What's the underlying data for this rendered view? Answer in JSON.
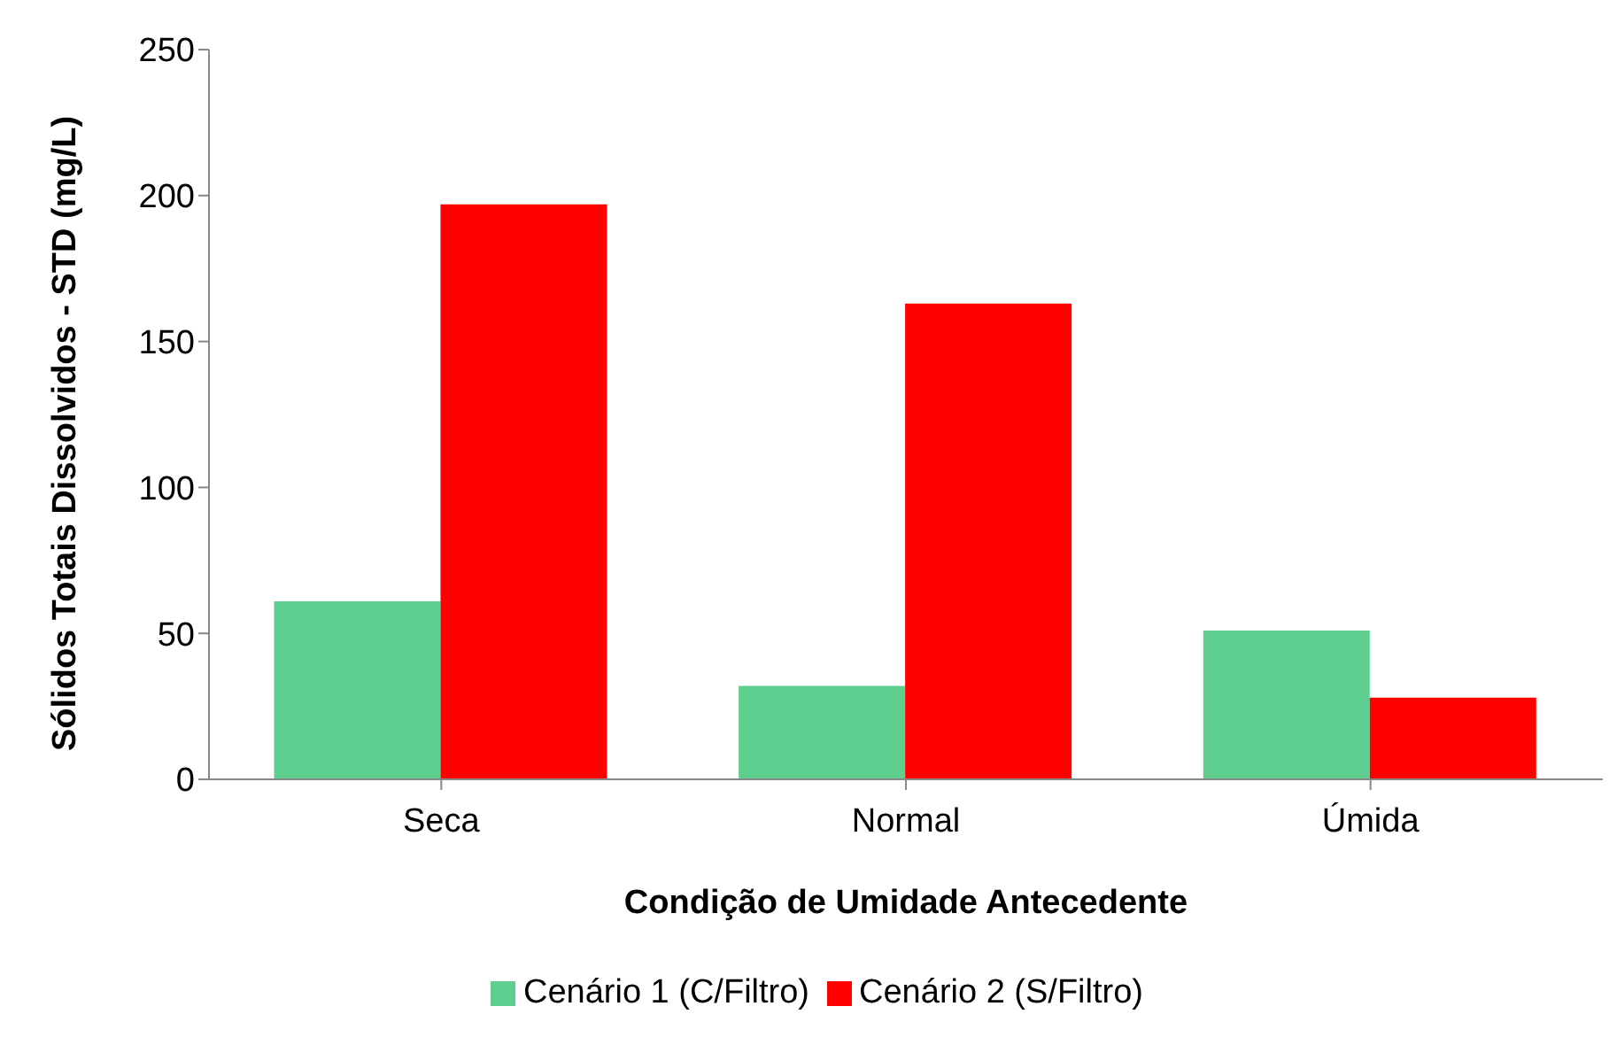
{
  "chart_data": {
    "type": "bar",
    "xlabel": "Condição de Umidade Antecedente",
    "ylabel": "Sólidos Totais Dissolvidos - STD (mg/L)",
    "categories": [
      "Seca",
      "Normal",
      "Úmida"
    ],
    "series": [
      {
        "name": "Cenário 1 (C/Filtro)",
        "color": "#5fcf8f",
        "values": [
          61,
          32,
          51
        ]
      },
      {
        "name": "Cenário 2 (S/Filtro)",
        "color": "#ff0000",
        "values": [
          197,
          163,
          28
        ]
      }
    ],
    "ylim": [
      0,
      250
    ],
    "yticks": [
      0,
      50,
      100,
      150,
      200,
      250
    ],
    "grid": false,
    "legend": "bottom"
  }
}
